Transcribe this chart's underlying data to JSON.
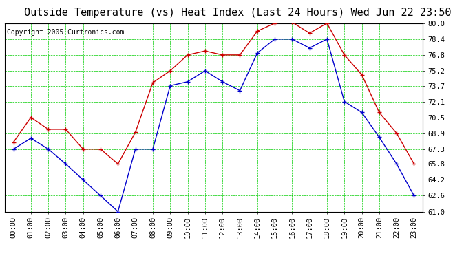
{
  "title": "Outside Temperature (vs) Heat Index (Last 24 Hours) Wed Jun 22 23:50",
  "copyright": "Copyright 2005 Curtronics.com",
  "x_labels": [
    "00:00",
    "01:00",
    "02:00",
    "03:00",
    "04:00",
    "05:00",
    "06:00",
    "07:00",
    "08:00",
    "09:00",
    "10:00",
    "11:00",
    "12:00",
    "13:00",
    "14:00",
    "15:00",
    "16:00",
    "17:00",
    "18:00",
    "19:00",
    "20:00",
    "21:00",
    "22:00",
    "23:00"
  ],
  "red_data": [
    68.0,
    70.5,
    69.3,
    69.3,
    67.3,
    67.3,
    65.8,
    69.0,
    74.0,
    75.2,
    76.8,
    77.2,
    76.8,
    76.8,
    79.2,
    80.0,
    80.1,
    79.0,
    80.0,
    76.8,
    74.8,
    71.0,
    68.9,
    65.8
  ],
  "blue_data": [
    67.3,
    68.4,
    67.3,
    65.8,
    64.2,
    62.6,
    61.0,
    67.3,
    67.3,
    73.7,
    74.1,
    75.2,
    74.1,
    73.2,
    77.0,
    78.4,
    78.4,
    77.5,
    78.4,
    72.1,
    71.0,
    68.5,
    65.8,
    62.6
  ],
  "ylim": [
    61.0,
    80.0
  ],
  "yticks": [
    61.0,
    62.6,
    64.2,
    65.8,
    67.3,
    68.9,
    70.5,
    72.1,
    73.7,
    75.2,
    76.8,
    78.4,
    80.0
  ],
  "background_color": "#ffffff",
  "plot_bg_color": "#ffffff",
  "grid_color": "#00cc00",
  "red_color": "#cc0000",
  "blue_color": "#0000cc",
  "title_fontsize": 11,
  "tick_fontsize": 7.5,
  "copyright_fontsize": 7
}
